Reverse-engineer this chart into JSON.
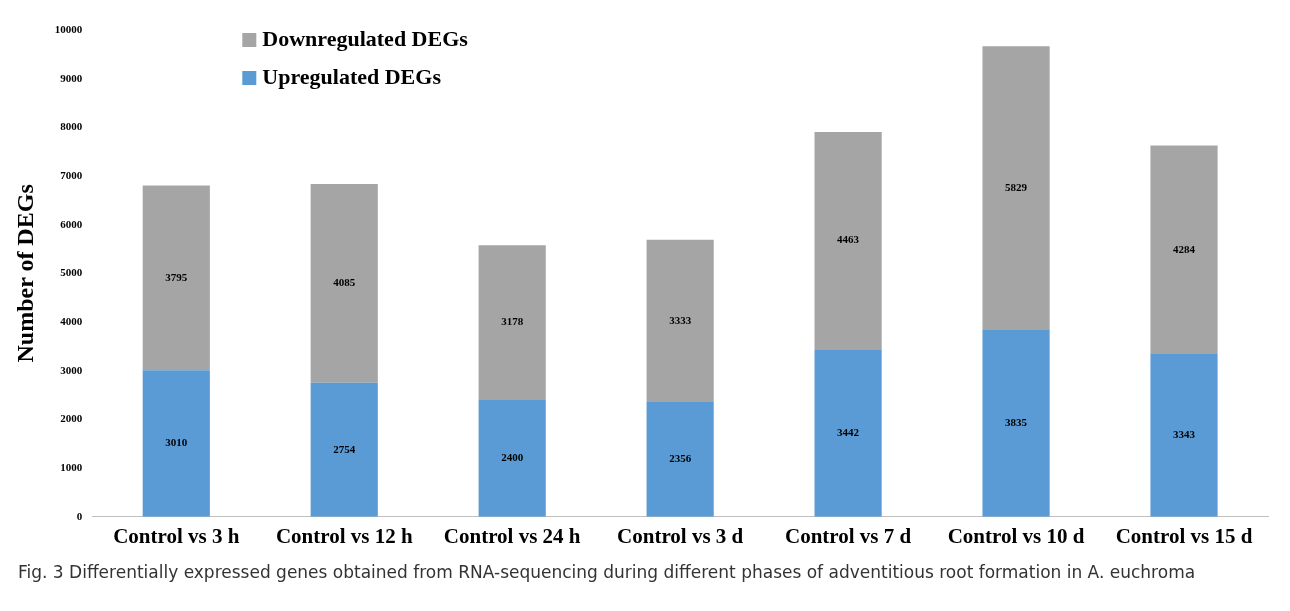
{
  "chart_data": {
    "type": "bar",
    "stacked": true,
    "ylabel": "Number of DEGs",
    "categories": [
      "Control vs 3 h",
      "Control vs 12 h",
      "Control vs 24 h",
      "Control vs 3 d",
      "Control vs 7 d",
      "Control vs 10 d",
      "Control vs 15 d"
    ],
    "series": [
      {
        "name": "Upregulated DEGs",
        "color": "#5b9bd5",
        "values": [
          3010,
          2754,
          2400,
          2356,
          3442,
          3835,
          3343
        ]
      },
      {
        "name": "Downregulated DEGs",
        "color": "#a5a5a5",
        "values": [
          3795,
          4085,
          3178,
          3333,
          4463,
          5829,
          4284
        ]
      }
    ],
    "ylim": [
      0,
      10000
    ],
    "yticks": [
      0,
      1000,
      2000,
      3000,
      4000,
      5000,
      6000,
      7000,
      8000,
      9000,
      10000
    ],
    "grid": false,
    "legend": "top left",
    "data_labels": true,
    "annotations": [
      "Fig. 3 Differentially expressed genes obtained from RNA-sequencing during different phases of adventitious root formation in A. euchroma"
    ]
  }
}
